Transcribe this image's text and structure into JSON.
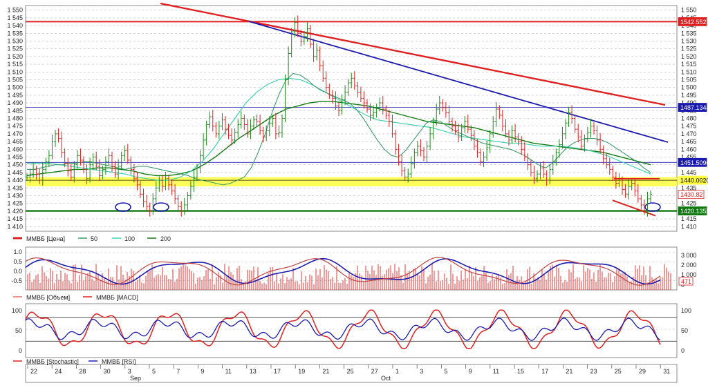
{
  "chart_data": [
    {
      "type": "line",
      "panel": "price",
      "y_ticks": [
        "1 550",
        "1 545",
        "1 540",
        "1 535",
        "1 530",
        "1 525",
        "1 520",
        "1 515",
        "1 510",
        "1 505",
        "1 500",
        "1 495",
        "1 490",
        "1 485",
        "1 480",
        "1 475",
        "1 470",
        "1 465",
        "1 460",
        "1 455",
        "1 450",
        "1 445",
        "1 440",
        "1 435",
        "1 430",
        "1 425",
        "1 420",
        "1 415",
        "1 410"
      ],
      "ylim": [
        1407,
        1553
      ],
      "grid": true,
      "legend": [
        {
          "name": "ММВБ [Цена]",
          "color": "#e02020"
        },
        {
          "name": "50",
          "color": "#3a9a6a"
        },
        {
          "name": "100",
          "color": "#40d0b0"
        },
        {
          "name": "200",
          "color": "#107a10"
        }
      ],
      "levels": [
        {
          "label": "1542.5527",
          "value": 1542.55,
          "color": "#e02020"
        },
        {
          "label": "1487.1344",
          "value": 1487.13,
          "color": "#1a1ab0"
        },
        {
          "label": "1451.5090",
          "value": 1451.51,
          "color": "#1a1ab0"
        },
        {
          "label": "1440.0020",
          "value": 1440.0,
          "color": "#222200"
        },
        {
          "label": "1430.82",
          "value": 1430.82,
          "color": "#e02020"
        },
        {
          "label": "1420.1355",
          "value": 1420.14,
          "color": "#107a10"
        }
      ],
      "price_path": [
        1442,
        1444,
        1447,
        1444,
        1440,
        1447,
        1452,
        1456,
        1465,
        1470,
        1467,
        1458,
        1451,
        1446,
        1442,
        1450,
        1456,
        1453,
        1447,
        1441,
        1450,
        1455,
        1449,
        1443,
        1447,
        1452,
        1456,
        1449,
        1444,
        1449,
        1456,
        1459,
        1453,
        1447,
        1441,
        1437,
        1431,
        1426,
        1423,
        1420,
        1428,
        1435,
        1440,
        1436,
        1441,
        1437,
        1433,
        1428,
        1423,
        1420,
        1424,
        1430,
        1436,
        1442,
        1448,
        1456,
        1466,
        1476,
        1481,
        1475,
        1470,
        1475,
        1479,
        1473,
        1469,
        1466,
        1471,
        1476,
        1480,
        1476,
        1470,
        1475,
        1479,
        1478,
        1472,
        1468,
        1472,
        1477,
        1480,
        1470,
        1471,
        1480,
        1505,
        1522,
        1536,
        1542,
        1535,
        1530,
        1533,
        1538,
        1528,
        1520,
        1524,
        1514,
        1506,
        1500,
        1495,
        1493,
        1488,
        1485,
        1492,
        1497,
        1503,
        1506,
        1501,
        1497,
        1493,
        1490,
        1486,
        1482,
        1484,
        1487,
        1490,
        1486,
        1482,
        1478,
        1470,
        1460,
        1452,
        1446,
        1442,
        1444,
        1451,
        1458,
        1462,
        1459,
        1455,
        1462,
        1470,
        1478,
        1486,
        1490,
        1487,
        1484,
        1478,
        1475,
        1472,
        1468,
        1474,
        1478,
        1473,
        1469,
        1462,
        1458,
        1452,
        1455,
        1461,
        1470,
        1478,
        1486,
        1482,
        1475,
        1470,
        1466,
        1472,
        1468,
        1465,
        1460,
        1455,
        1450,
        1445,
        1441,
        1444,
        1448,
        1444,
        1440,
        1447,
        1452,
        1458,
        1463,
        1470,
        1477,
        1484,
        1480,
        1473,
        1468,
        1462,
        1467,
        1471,
        1475,
        1472,
        1466,
        1460,
        1454,
        1450,
        1447,
        1442,
        1438,
        1440,
        1434,
        1431,
        1436,
        1438,
        1433,
        1428,
        1424,
        1420,
        1428,
        1431
      ],
      "ma50": [
        1447,
        1447,
        1448,
        1449,
        1450,
        1450,
        1451,
        1451,
        1452,
        1452,
        1451,
        1450,
        1449,
        1448,
        1447,
        1448,
        1449,
        1449,
        1448,
        1447,
        1446,
        1445,
        1444,
        1443,
        1441,
        1440,
        1439,
        1438,
        1437,
        1438,
        1440,
        1442,
        1448,
        1458,
        1470,
        1484,
        1496,
        1505,
        1509,
        1508,
        1505,
        1501,
        1498,
        1496,
        1494,
        1492,
        1490,
        1486,
        1480,
        1473,
        1466,
        1460,
        1456,
        1455,
        1459,
        1465,
        1471,
        1477,
        1479,
        1478,
        1475,
        1472,
        1470,
        1468,
        1466,
        1464,
        1463,
        1462,
        1461,
        1460,
        1458,
        1456,
        1453,
        1450,
        1448,
        1451,
        1456,
        1461,
        1464,
        1466,
        1467,
        1467,
        1466,
        1464,
        1461,
        1458,
        1455,
        1452,
        1448,
        1445
      ],
      "ma100": [
        1451,
        1451,
        1451,
        1450,
        1449,
        1448,
        1447,
        1446,
        1445,
        1444,
        1442,
        1441,
        1440,
        1440,
        1442,
        1446,
        1452,
        1460,
        1470,
        1480,
        1490,
        1497,
        1502,
        1505,
        1506,
        1505,
        1502,
        1498,
        1494,
        1490,
        1486,
        1482,
        1479,
        1478,
        1477,
        1476,
        1475,
        1474,
        1472,
        1470,
        1468,
        1467,
        1466,
        1465,
        1464,
        1464,
        1463,
        1462,
        1462,
        1462,
        1461,
        1460,
        1458,
        1456,
        1453,
        1450,
        1447,
        1444
      ],
      "ma200": [
        1443,
        1444,
        1445,
        1446,
        1447,
        1447,
        1448,
        1448,
        1447,
        1446,
        1444,
        1443,
        1443,
        1444,
        1446,
        1450,
        1455,
        1461,
        1467,
        1472,
        1477,
        1482,
        1486,
        1488,
        1490,
        1491,
        1491,
        1490,
        1489,
        1488,
        1486,
        1484,
        1482,
        1480,
        1478,
        1477,
        1476,
        1475,
        1474,
        1472,
        1470,
        1468,
        1466,
        1464,
        1463,
        1462,
        1461,
        1460,
        1459,
        1458,
        1456,
        1454,
        1452,
        1450
      ]
    },
    {
      "type": "bar",
      "panel": "volume_macd",
      "left_ticks": [
        "1.0",
        "0.5",
        "0.0",
        "-0.5"
      ],
      "right_ticks": [
        "3 000",
        "2 000",
        "1 000",
        "0"
      ],
      "last_volume": "471",
      "legend": [
        {
          "name": "ММВБ [Объем]",
          "color": "#e02020"
        },
        {
          "name": "ММВБ [MACD]",
          "color": "#e02020"
        }
      ]
    },
    {
      "type": "line",
      "panel": "oscillators",
      "left_ticks": [
        "100",
        "50",
        "0"
      ],
      "right_ticks": [
        "100",
        "50",
        "0"
      ],
      "legend": [
        {
          "name": "ММВБ [Stochastic]",
          "color": "#e02020"
        },
        {
          "name": "ММВБ [RSI]",
          "color": "#1a1ab0"
        }
      ]
    }
  ],
  "x_axis": {
    "days": [
      "22",
      "24",
      "28",
      "30",
      "3",
      "5",
      "7",
      "9",
      "11",
      "13",
      "17",
      "19",
      "21",
      "25",
      "27",
      "1",
      "3",
      "5",
      "9",
      "11",
      "15",
      "17",
      "21",
      "23",
      "25",
      "29",
      "31"
    ],
    "months": [
      "Sep",
      "Oct"
    ]
  },
  "colors": {
    "red": "#e02020",
    "blue": "#1a1ab0",
    "dark_green": "#107a10",
    "yellow": "#ffff40"
  }
}
